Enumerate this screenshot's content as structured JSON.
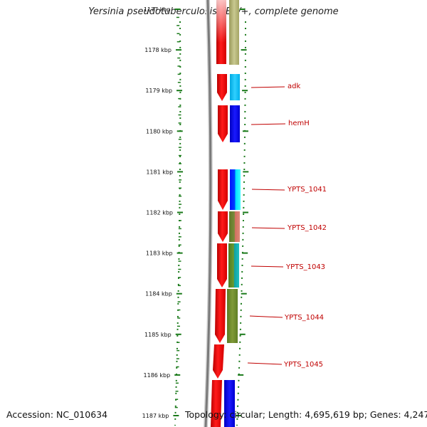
{
  "title": "Yersinia pseudotuberculosis PB1/+, complete genome",
  "footer": {
    "accession": "Accession: NC_010634",
    "summary": "Topology: circular; Length: 4,695,619 bp; Genes: 4,247"
  },
  "colors": {
    "tick": "#1a7a1a",
    "backbone": "#7a7a7a",
    "label": "#c00000",
    "cds_forward": "#ff0000"
  },
  "ruler": {
    "unit": "kbp",
    "ticks": [
      "1177 kbp",
      "1178 kbp",
      "1179 kbp",
      "1180 kbp",
      "1181 kbp",
      "1182 kbp",
      "1183 kbp",
      "1184 kbp",
      "1185 kbp",
      "1186 kbp",
      "1187 kbp"
    ]
  },
  "gene_labels": [
    "adk",
    "hemH",
    "YPTS_1041",
    "YPTS_1042",
    "YPTS_1043",
    "YPTS_1044",
    "YPTS_1045"
  ]
}
